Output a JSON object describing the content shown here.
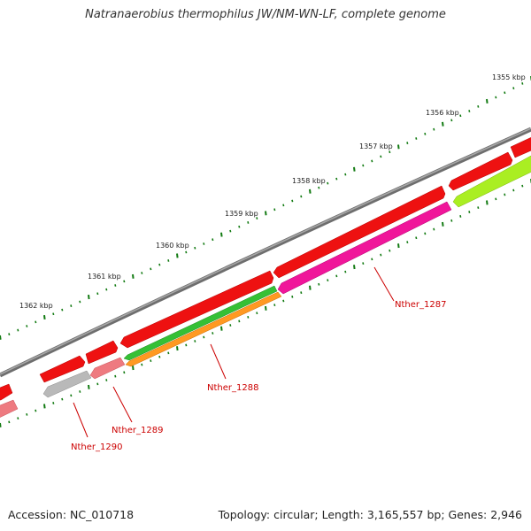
{
  "title": "Natranaerobius thermophilus JW/NM-WN-LF, complete genome",
  "accession": "Accession: NC_010718",
  "topology": "Topology: circular; Length: 3,165,557 bp; Genes: 2,946",
  "colors": {
    "backbone": "#7a7a7a",
    "forward_cds": "#ee1111",
    "scale_ticks": "#117a11",
    "gene_label": "#cc0000"
  },
  "scale_labels": [
    "1355 kbp",
    "1356 kbp",
    "1357 kbp",
    "1358 kbp",
    "1359 kbp",
    "1360 kbp",
    "1361 kbp",
    "1362 kbp"
  ],
  "gene_labels": [
    "Nther_1287",
    "Nther_1288",
    "Nther_1289",
    "Nther_1290"
  ]
}
